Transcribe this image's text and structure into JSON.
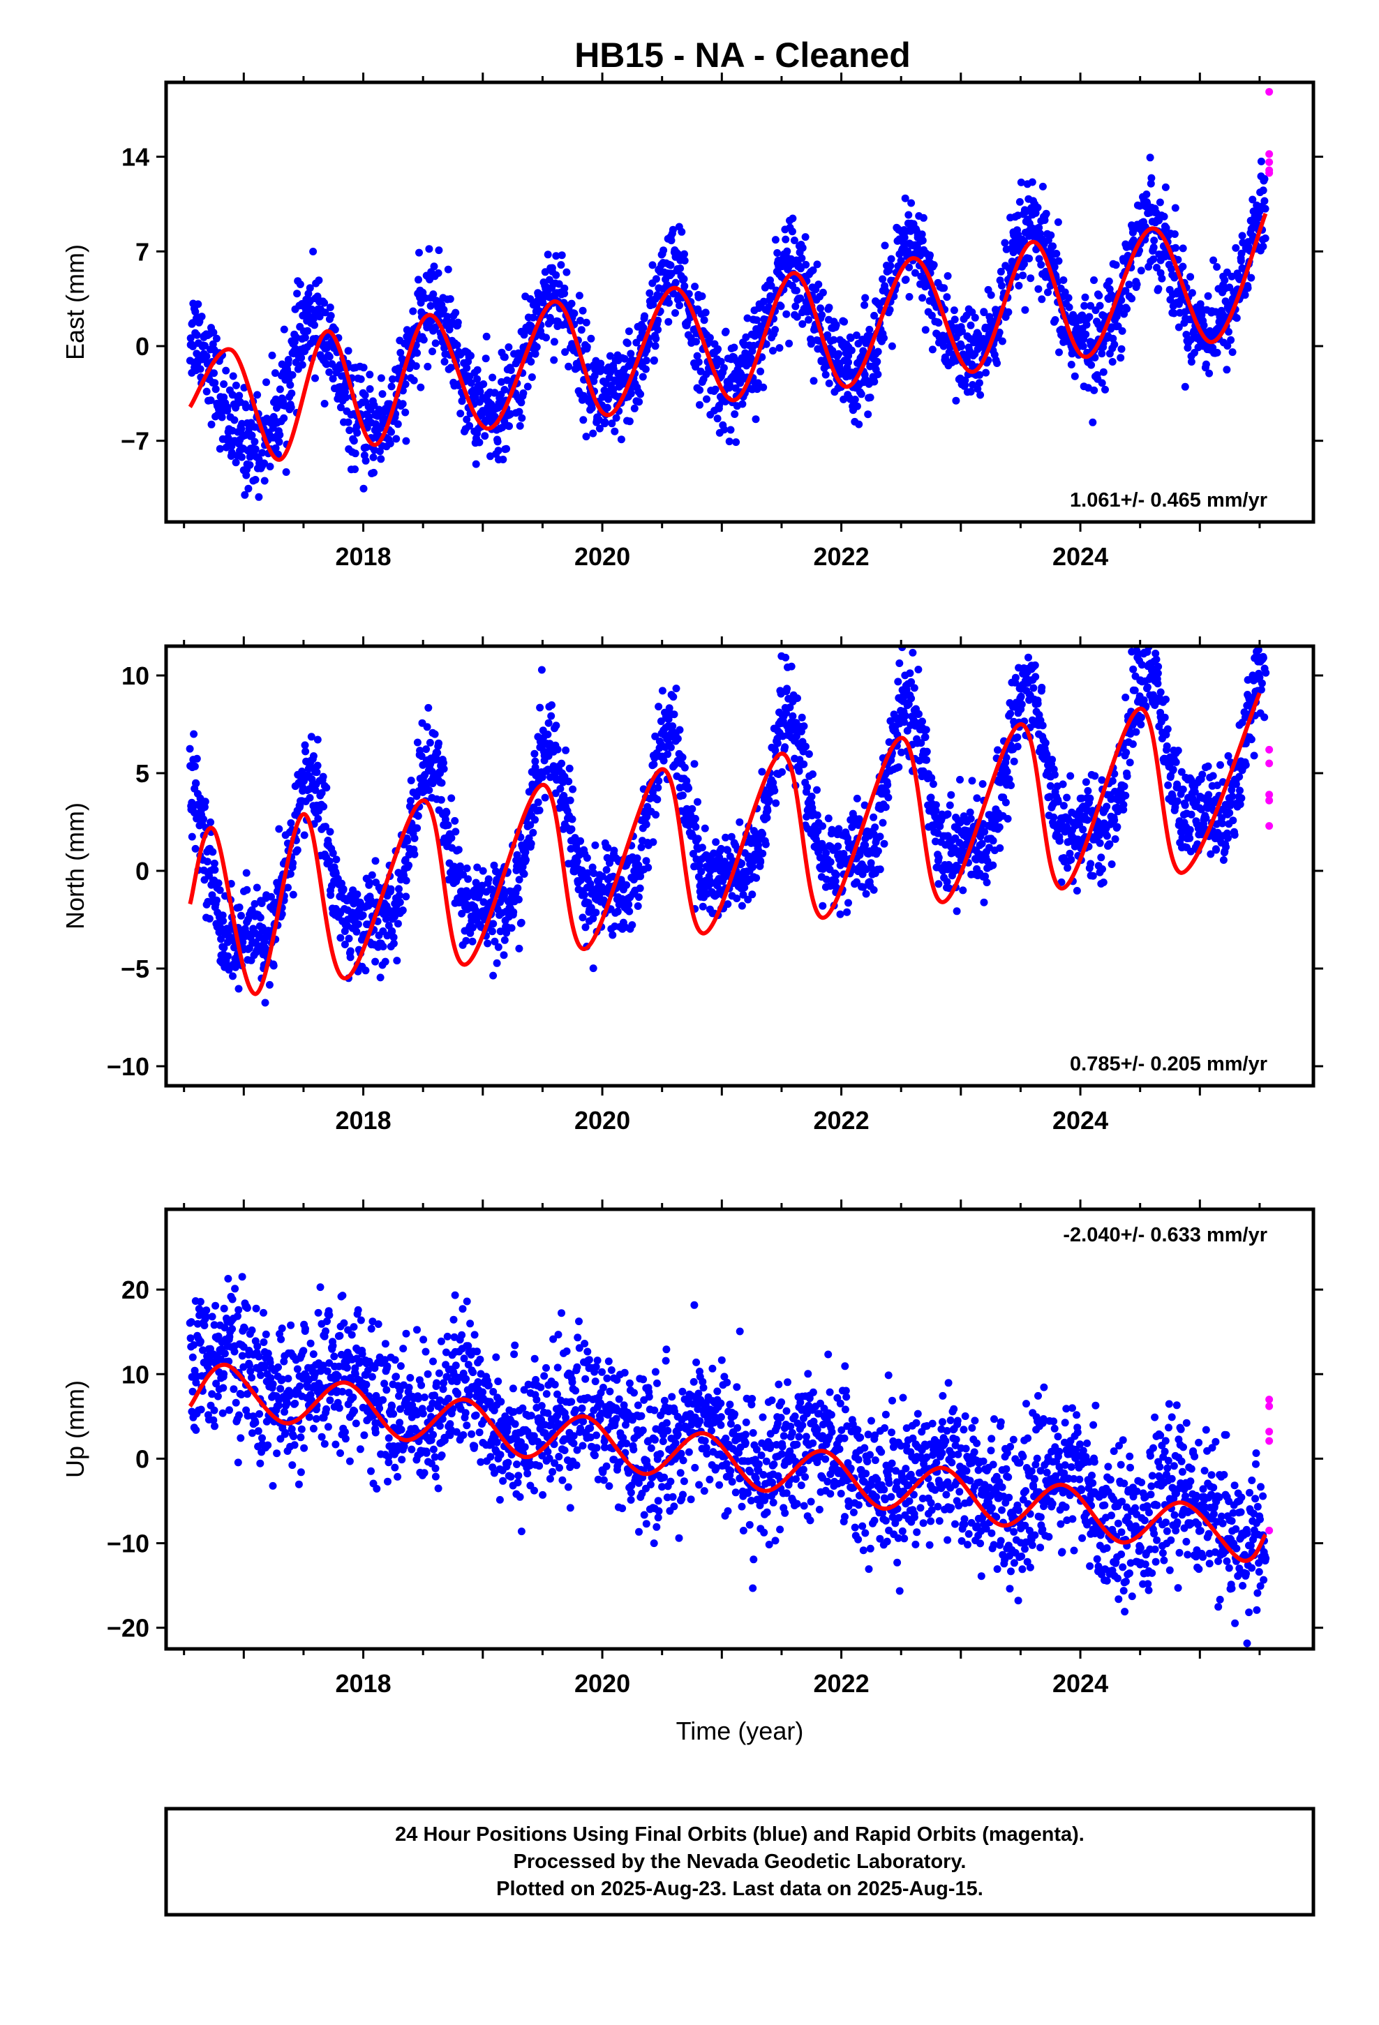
{
  "title": "HB15  - NA - Cleaned",
  "footer_lines": [
    "24 Hour Positions Using Final Orbits (blue) and Rapid Orbits (magenta).",
    "Processed by the Nevada Geodetic Laboratory.",
    "Plotted on 2025-Aug-23. Last data on 2025-Aug-15."
  ],
  "colors": {
    "final_orbits": "#0000ff",
    "rapid_orbits": "#ff00ff",
    "model_fit": "#ff0000",
    "frame": "#000000"
  },
  "chart_data": [
    {
      "type": "scatter",
      "component": "East",
      "ylabel": "East (mm)",
      "xlabel": "",
      "xlim": [
        2016.35,
        2025.95
      ],
      "ylim": [
        -13,
        19.5
      ],
      "yticks": [
        -7,
        0,
        7,
        14
      ],
      "xticks": [
        2018,
        2020,
        2022,
        2024
      ],
      "trend_label": "1.061+/- 0.465 mm/yr",
      "trend_label_position": "bottom-right",
      "series": [
        {
          "name": "Final Orbits",
          "color": "#0000ff",
          "marker": "dot",
          "start": 2016.55,
          "end": 2025.55,
          "approx_points": 2600,
          "model": {
            "offset": -4.0,
            "trend_mm_per_yr": 1.061,
            "annual_amplitude": 4.3,
            "annual_phase_peak": 0.58,
            "semiannual_amplitude": 0.6,
            "noise_sd": 1.8
          }
        },
        {
          "name": "Rapid Orbits",
          "color": "#ff00ff",
          "marker": "dot",
          "x": [
            2025.58,
            2025.58,
            2025.58,
            2025.58,
            2025.58
          ],
          "y": [
            18.8,
            14.2,
            13.6,
            13.0,
            12.8
          ]
        },
        {
          "name": "Model Fit",
          "color": "#ff0000",
          "type": "line",
          "x": [
            2016.55,
            2016.9,
            2017.3,
            2017.7,
            2018.1,
            2018.55,
            2019.05,
            2019.6,
            2020.05,
            2020.6,
            2021.1,
            2021.6,
            2022.05,
            2022.6,
            2023.1,
            2023.6,
            2024.05,
            2024.6,
            2025.1,
            2025.55
          ],
          "y": [
            -4.5,
            -0.3,
            -8.4,
            1.1,
            -7.3,
            2.3,
            -6.1,
            3.3,
            -5.1,
            4.3,
            -4.0,
            5.4,
            -3.0,
            6.5,
            -1.9,
            7.7,
            -0.8,
            8.7,
            0.3,
            9.8
          ]
        }
      ]
    },
    {
      "type": "scatter",
      "component": "North",
      "ylabel": "North (mm)",
      "xlabel": "",
      "xlim": [
        2016.35,
        2025.95
      ],
      "ylim": [
        -11,
        11.5
      ],
      "yticks": [
        -10,
        -5,
        0,
        5,
        10
      ],
      "xticks": [
        2018,
        2020,
        2022,
        2024
      ],
      "trend_label": "0.785+/- 0.205 mm/yr",
      "trend_label_position": "bottom-right",
      "series": [
        {
          "name": "Final Orbits",
          "color": "#0000ff",
          "marker": "dot",
          "start": 2016.55,
          "end": 2025.55,
          "approx_points": 2600,
          "model": {
            "offset": -1.2,
            "trend_mm_per_yr": 0.785,
            "annual_amplitude": 3.8,
            "annual_phase_peak": 0.55,
            "semiannual_amplitude": 1.4,
            "noise_sd": 1.2
          }
        },
        {
          "name": "Rapid Orbits",
          "color": "#ff00ff",
          "marker": "dot",
          "x": [
            2025.58,
            2025.58,
            2025.58,
            2025.58,
            2025.58
          ],
          "y": [
            6.2,
            5.5,
            3.9,
            3.6,
            2.3
          ]
        },
        {
          "name": "Model Fit",
          "color": "#ff0000",
          "type": "line",
          "x": [
            2016.55,
            2016.75,
            2017.1,
            2017.5,
            2017.85,
            2018.5,
            2018.85,
            2019.5,
            2019.85,
            2020.5,
            2020.85,
            2021.5,
            2021.85,
            2022.5,
            2022.85,
            2023.5,
            2023.85,
            2024.5,
            2024.85,
            2025.5
          ],
          "y": [
            -1.7,
            2.1,
            -6.3,
            2.9,
            -5.5,
            3.6,
            -4.8,
            4.4,
            -4.0,
            5.2,
            -3.2,
            6.0,
            -2.4,
            6.8,
            -1.6,
            7.5,
            -0.9,
            8.3,
            -0.1,
            9.1
          ]
        }
      ]
    },
    {
      "type": "scatter",
      "component": "Up",
      "ylabel": "Up (mm)",
      "xlabel": "Time (year)",
      "xlim": [
        2016.35,
        2025.95
      ],
      "ylim": [
        -22.5,
        29.5
      ],
      "yticks": [
        -20,
        -10,
        0,
        10,
        20
      ],
      "xticks": [
        2018,
        2020,
        2022,
        2024
      ],
      "trend_label": "-2.040+/- 0.633 mm/yr",
      "trend_label_position": "top-right",
      "series": [
        {
          "name": "Final Orbits",
          "color": "#0000ff",
          "marker": "dot",
          "start": 2016.55,
          "end": 2025.55,
          "approx_points": 2600,
          "model": {
            "offset": 10.5,
            "trend_mm_per_yr": -2.04,
            "annual_amplitude": 2.5,
            "annual_phase_peak": 0.85,
            "semiannual_amplitude": 0.4,
            "noise_sd": 4.2
          }
        },
        {
          "name": "Rapid Orbits",
          "color": "#ff00ff",
          "marker": "dot",
          "x": [
            2025.58,
            2025.58,
            2025.58,
            2025.58,
            2025.58
          ],
          "y": [
            7.0,
            6.2,
            3.2,
            2.1,
            -8.5
          ]
        },
        {
          "name": "Model Fit",
          "color": "#ff0000",
          "type": "line",
          "x": [
            2016.55,
            2016.85,
            2017.35,
            2017.85,
            2018.35,
            2018.85,
            2019.35,
            2019.85,
            2020.35,
            2020.85,
            2021.35,
            2021.85,
            2022.35,
            2022.85,
            2023.35,
            2023.85,
            2024.35,
            2024.85,
            2025.35,
            2025.55
          ],
          "y": [
            6.2,
            11.1,
            4.2,
            9.0,
            2.2,
            7.0,
            0.2,
            5.0,
            -1.8,
            3.0,
            -3.8,
            0.9,
            -5.9,
            -1.1,
            -7.9,
            -3.1,
            -9.9,
            -5.2,
            -12.0,
            -9.0
          ]
        }
      ]
    }
  ]
}
